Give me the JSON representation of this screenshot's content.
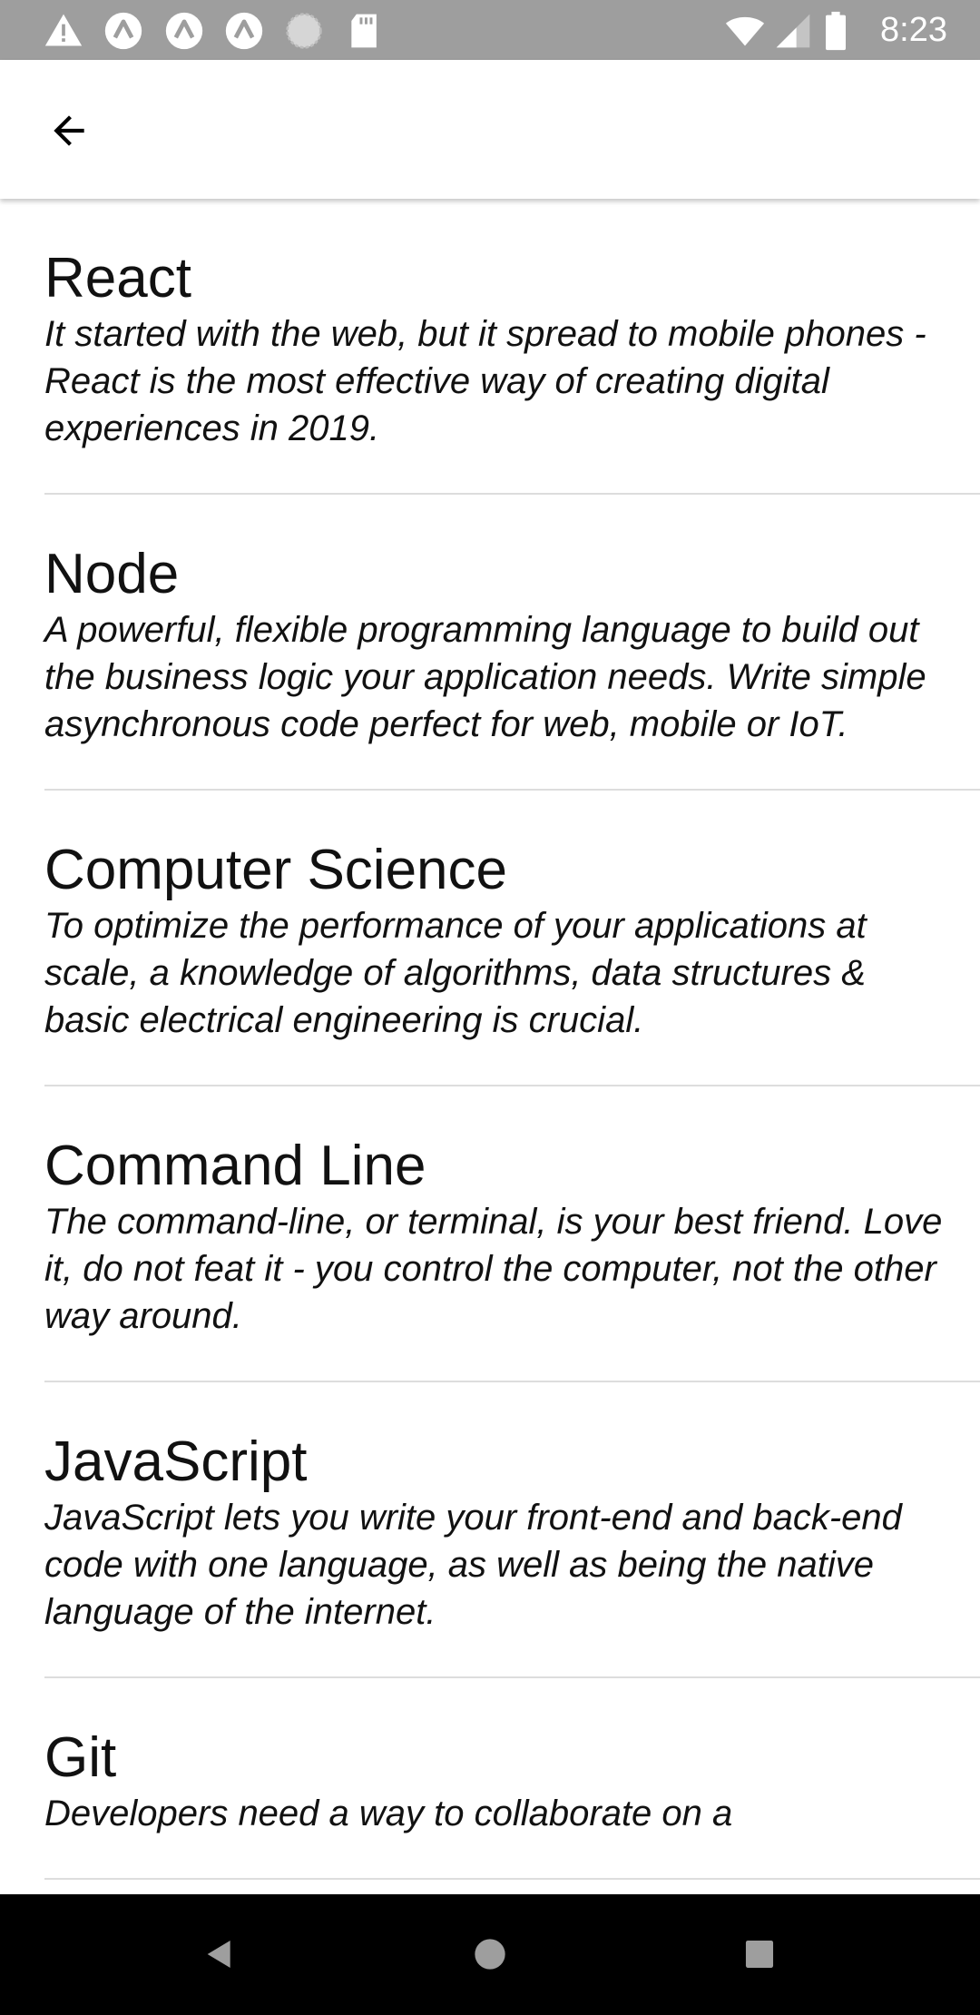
{
  "status_bar": {
    "time": "8:23",
    "left_icons": [
      "warning-icon",
      "app-notification-icon",
      "app-notification-icon",
      "app-notification-icon",
      "sync-circle-icon",
      "sd-card-icon"
    ],
    "right_icons": [
      "wifi-icon",
      "cell-signal-icon",
      "battery-icon"
    ]
  },
  "app_bar": {
    "back_icon": "arrow-left-icon"
  },
  "topics": [
    {
      "title": "React",
      "description": "It started with the web, but it spread to mobile phones - React is the most effective way of creating digital experiences in 2019."
    },
    {
      "title": "Node",
      "description": "A powerful, flexible programming language to build out the business logic your application needs. Write simple asynchronous code perfect for web, mobile or IoT."
    },
    {
      "title": "Computer Science",
      "description": "To optimize the performance of your applications at scale, a knowledge of algorithms, data structures & basic electrical engineering is crucial."
    },
    {
      "title": "Command Line",
      "description": "The command-line, or terminal, is your best friend. Love it, do not feat it - you control the computer, not the other way around."
    },
    {
      "title": "JavaScript",
      "description": "JavaScript lets you write your front-end and back-end code with one language, as well as being the native language of the internet."
    },
    {
      "title": "Git",
      "description": "Developers need a way to collaborate on a"
    }
  ],
  "nav_bar": {
    "icons": [
      "back-triangle-icon",
      "home-circle-icon",
      "recents-square-icon"
    ]
  },
  "colors": {
    "status_bar_bg": "#9e9e9e",
    "nav_bar_bg": "#000000",
    "divider": "#dddddd",
    "text": "#111111"
  }
}
